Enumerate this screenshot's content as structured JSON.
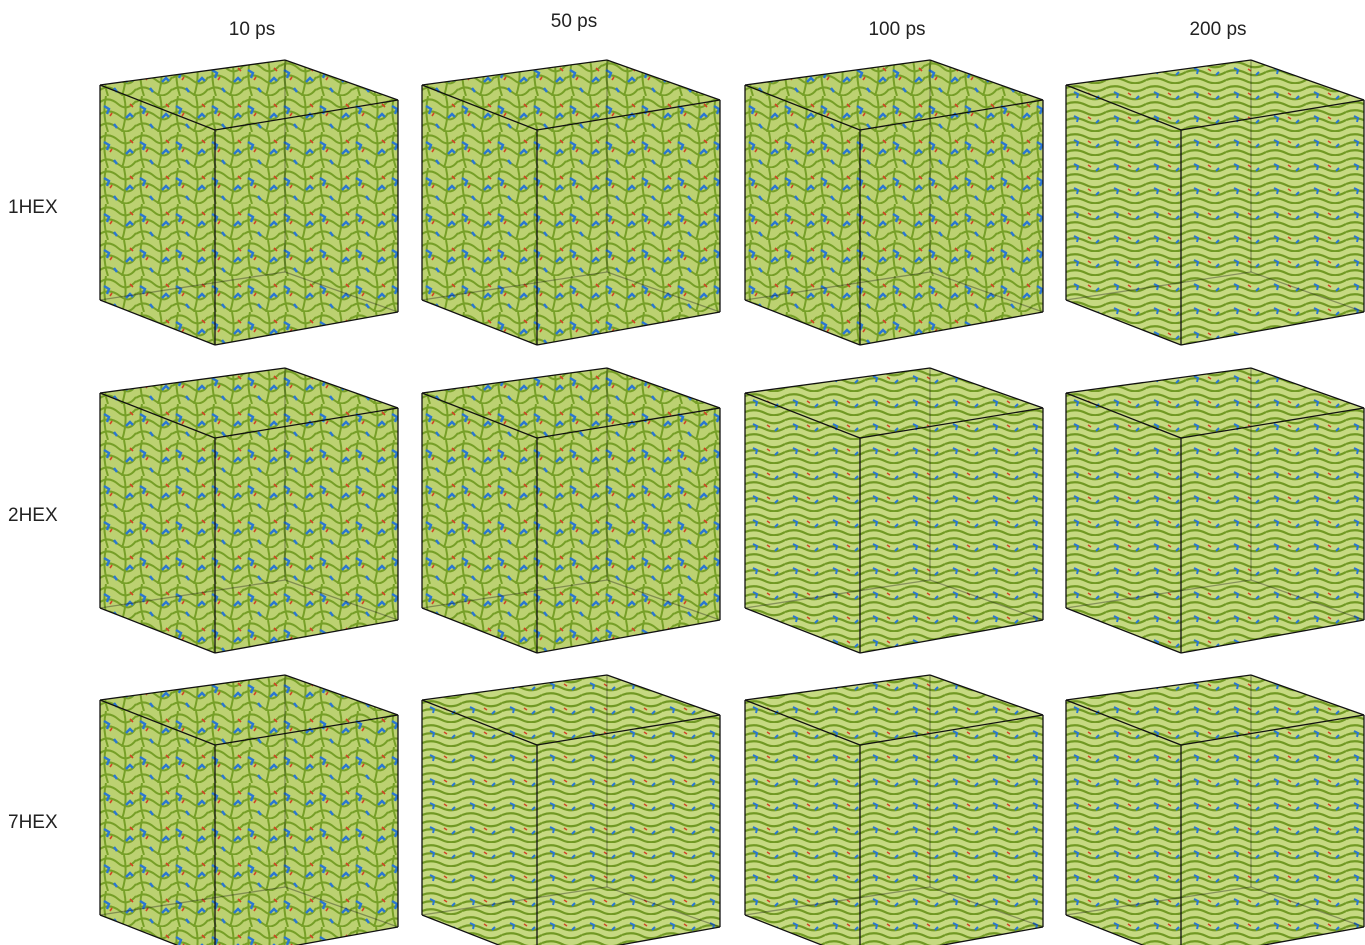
{
  "columns": [
    "10 ps",
    "50 ps",
    "100 ps",
    "200 ps"
  ],
  "rows": [
    "1HEX",
    "2HEX",
    "7HEX"
  ]
}
